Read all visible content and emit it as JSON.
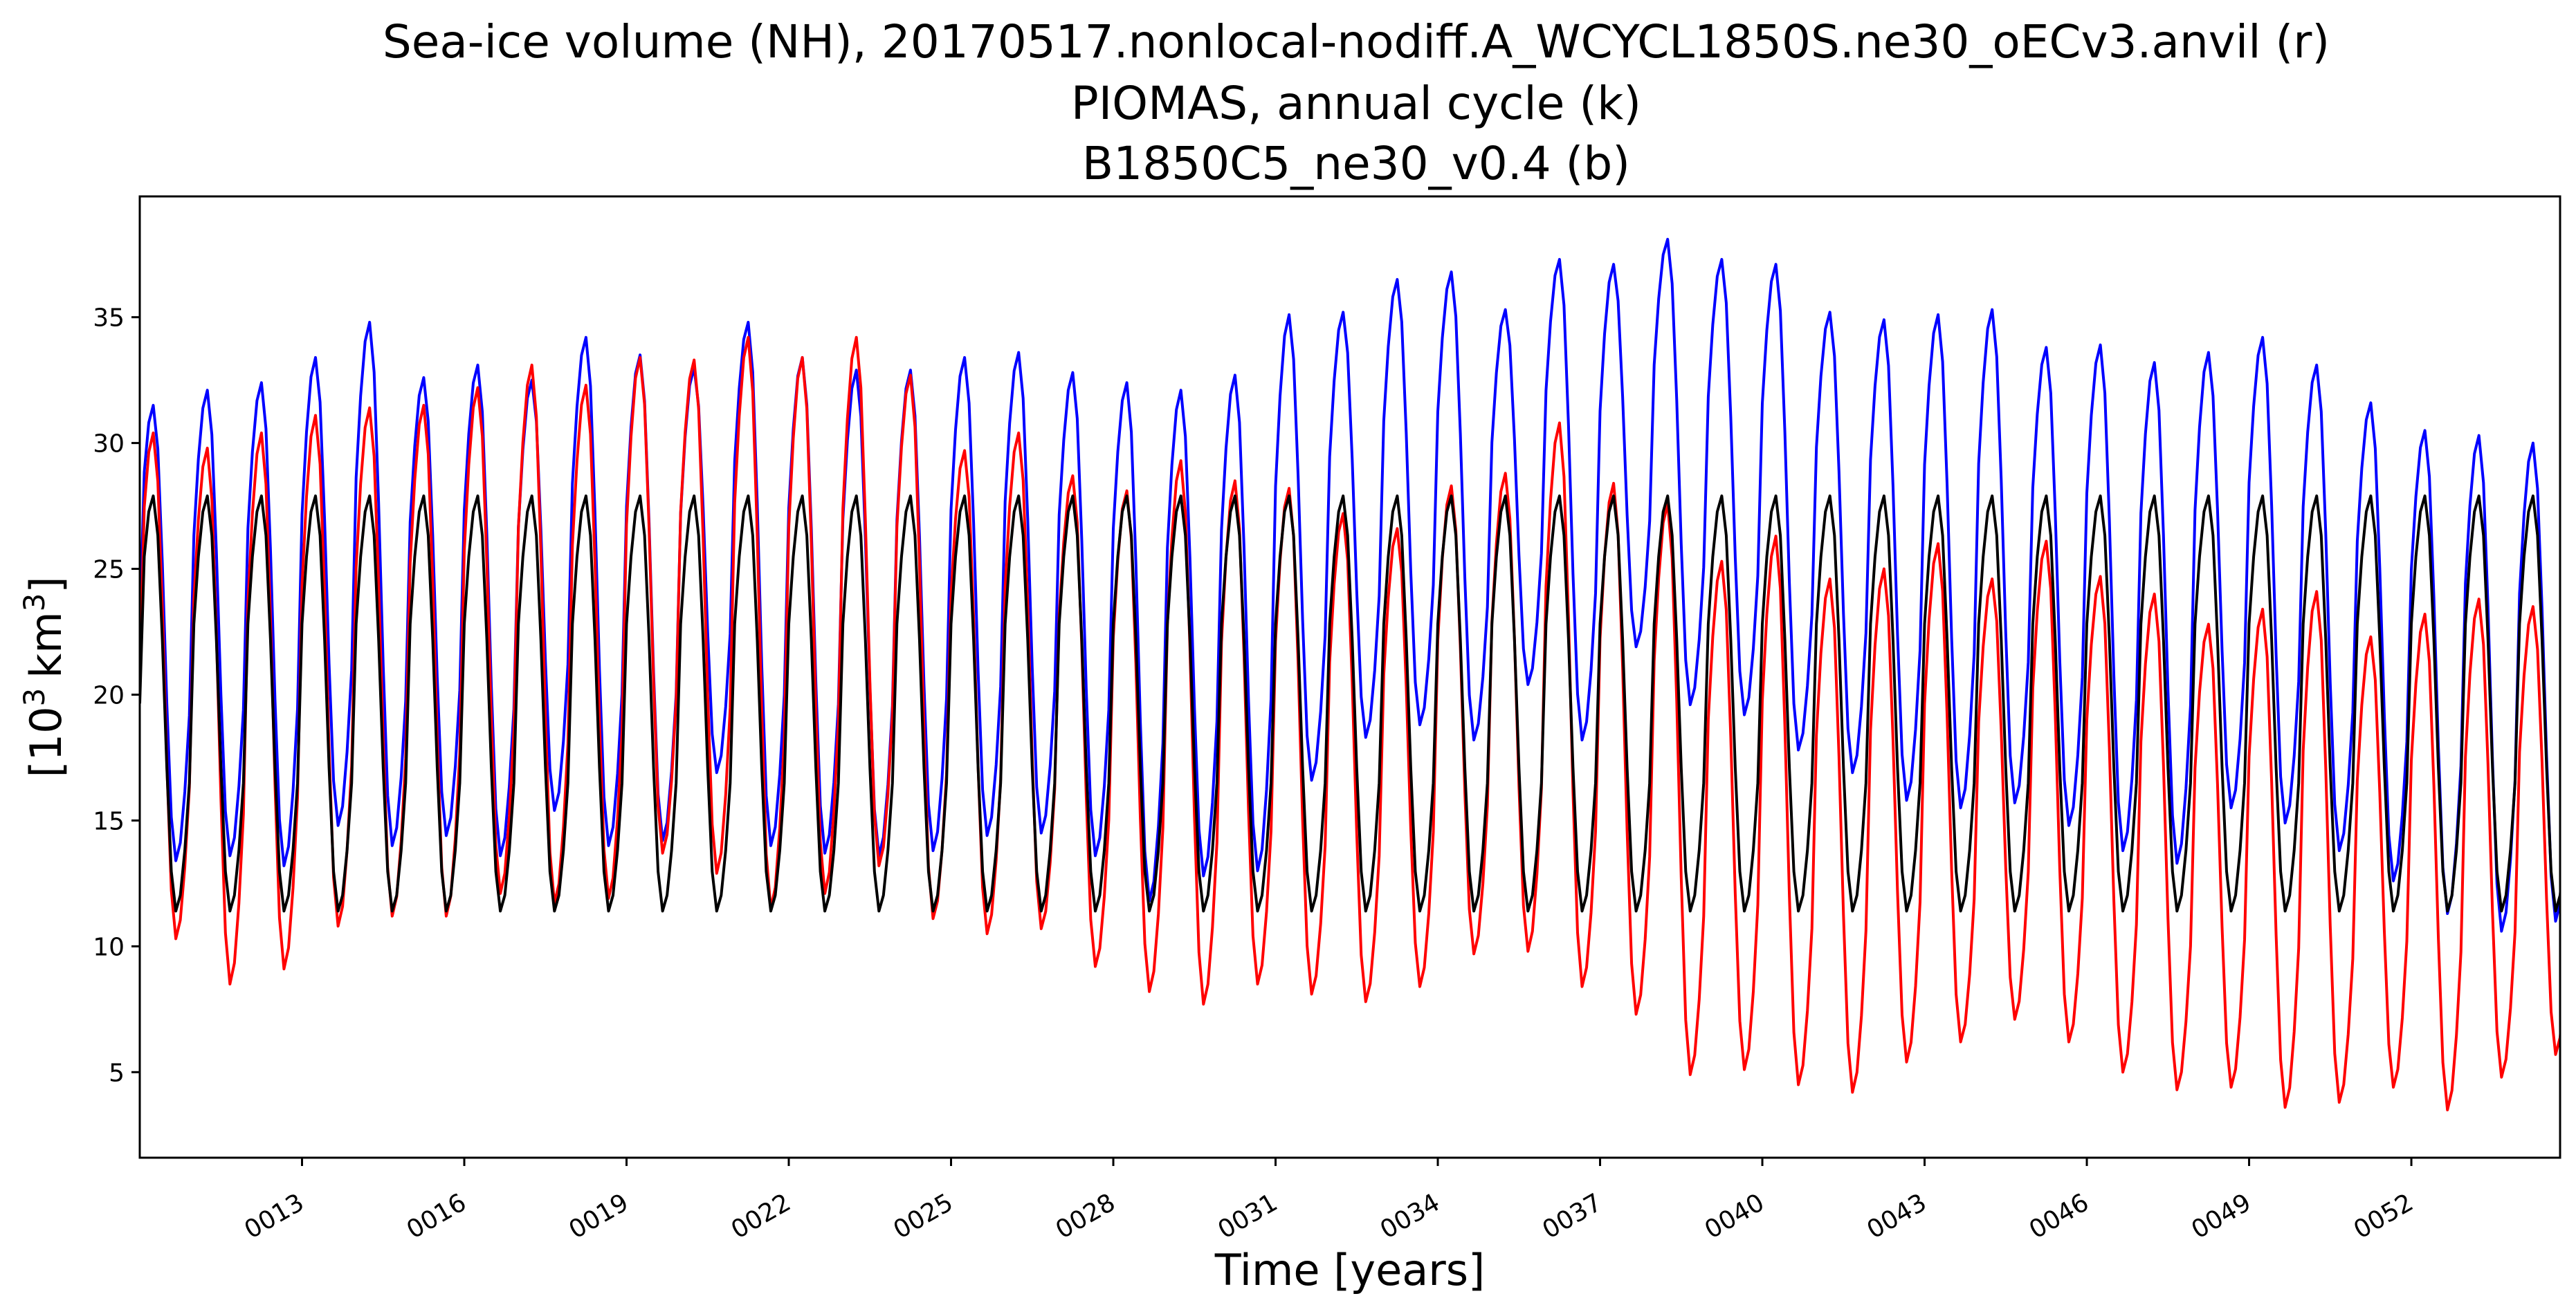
{
  "colors": {
    "background": "#ffffff",
    "axes": "#000000",
    "run_red": "#ff0000",
    "run_blue": "#0000ff",
    "piomas_black": "#000000"
  },
  "chart_data": {
    "type": "line",
    "title_lines": [
      "Sea-ice volume (NH), 20170517.nonlocal-nodiff.A_WCYCL1850S.ne30_oECv3.anvil (r)",
      "PIOMAS, annual cycle (k)",
      "B1850C5_ne30_v0.4 (b)"
    ],
    "xlabel": "Time [years]",
    "ylabel_base": "[10",
    "ylabel_sup": "3",
    "ylabel_unit": "km",
    "ylabel_end": "]",
    "x_unit": "model year",
    "xlim": [
      10.0,
      54.75
    ],
    "ylim": [
      1.6,
      39.8
    ],
    "grid": false,
    "legend": "none",
    "x_ticks": [
      {
        "value": 13,
        "label": "0013"
      },
      {
        "value": 16,
        "label": "0016"
      },
      {
        "value": 19,
        "label": "0019"
      },
      {
        "value": 22,
        "label": "0022"
      },
      {
        "value": 25,
        "label": "0025"
      },
      {
        "value": 28,
        "label": "0028"
      },
      {
        "value": 31,
        "label": "0031"
      },
      {
        "value": 34,
        "label": "0034"
      },
      {
        "value": 37,
        "label": "0037"
      },
      {
        "value": 40,
        "label": "0040"
      },
      {
        "value": 43,
        "label": "0043"
      },
      {
        "value": 46,
        "label": "0046"
      },
      {
        "value": 49,
        "label": "0049"
      },
      {
        "value": 52,
        "label": "0052"
      }
    ],
    "y_ticks": [
      5,
      10,
      15,
      20,
      25,
      30,
      35
    ],
    "years": [
      10,
      11,
      12,
      13,
      14,
      15,
      16,
      17,
      18,
      19,
      20,
      21,
      22,
      23,
      24,
      25,
      26,
      27,
      28,
      29,
      30,
      31,
      32,
      33,
      34,
      35,
      36,
      37,
      38,
      39,
      40,
      41,
      42,
      43,
      44,
      45,
      46,
      47,
      48,
      49,
      50,
      51,
      52,
      53,
      54
    ],
    "series": [
      {
        "color": "#0000ff",
        "annual_max": [
          31.5,
          32.1,
          32.4,
          33.4,
          34.8,
          32.6,
          33.1,
          32.5,
          34.2,
          33.5,
          33.0,
          34.8,
          33.4,
          32.9,
          32.9,
          33.4,
          33.6,
          32.8,
          32.4,
          32.1,
          32.7,
          35.1,
          35.2,
          36.5,
          36.8,
          35.3,
          37.3,
          37.1,
          38.1,
          37.3,
          37.1,
          35.2,
          34.9,
          35.1,
          35.3,
          33.8,
          33.9,
          33.2,
          33.6,
          34.2,
          33.1,
          31.6,
          30.5,
          30.3,
          30.0
        ],
        "annual_min": [
          13.4,
          13.6,
          13.2,
          14.8,
          14.0,
          14.4,
          13.6,
          15.4,
          14.0,
          14.2,
          16.9,
          14.0,
          13.7,
          13.6,
          13.8,
          14.4,
          14.5,
          13.6,
          11.8,
          12.8,
          13.0,
          16.6,
          18.3,
          18.8,
          18.2,
          20.4,
          18.2,
          21.9,
          19.6,
          19.2,
          17.8,
          16.9,
          15.8,
          15.5,
          15.7,
          14.8,
          13.8,
          13.3,
          15.5,
          14.9,
          13.8,
          12.6,
          11.3,
          10.6,
          11.0
        ]
      },
      {
        "color": "#ff0000",
        "annual_max": [
          30.4,
          29.8,
          30.4,
          31.1,
          31.4,
          31.5,
          32.2,
          33.1,
          32.3,
          33.4,
          33.3,
          34.2,
          33.4,
          34.2,
          32.7,
          29.7,
          30.4,
          28.7,
          28.1,
          29.3,
          28.5,
          28.2,
          27.2,
          26.6,
          28.3,
          28.8,
          30.8,
          28.4,
          27.6,
          25.3,
          26.3,
          24.6,
          25.0,
          26.0,
          24.6,
          26.1,
          24.7,
          24.0,
          22.8,
          23.4,
          24.1,
          22.3,
          23.2,
          23.8,
          23.5
        ],
        "annual_min": [
          10.3,
          8.5,
          9.1,
          10.8,
          11.2,
          11.2,
          12.1,
          11.7,
          11.9,
          13.7,
          12.9,
          11.5,
          12.1,
          13.2,
          11.1,
          10.5,
          10.7,
          9.2,
          8.2,
          7.7,
          8.5,
          8.1,
          7.8,
          8.4,
          9.7,
          9.8,
          8.4,
          7.3,
          4.9,
          5.1,
          4.5,
          4.2,
          5.4,
          6.2,
          7.1,
          6.2,
          5.0,
          4.3,
          4.4,
          3.6,
          3.8,
          4.4,
          3.5,
          4.8,
          5.7
        ]
      },
      {
        "color": "#000000",
        "annual_max": [
          27.9,
          27.9,
          27.9,
          27.9,
          27.9,
          27.9,
          27.9,
          27.9,
          27.9,
          27.9,
          27.9,
          27.9,
          27.9,
          27.9,
          27.9,
          27.9,
          27.9,
          27.9,
          27.9,
          27.9,
          27.9,
          27.9,
          27.9,
          27.9,
          27.9,
          27.9,
          27.9,
          27.9,
          27.9,
          27.9,
          27.9,
          27.9,
          27.9,
          27.9,
          27.9,
          27.9,
          27.9,
          27.9,
          27.9,
          27.9,
          27.9,
          27.9,
          27.9,
          27.9,
          27.9
        ],
        "annual_min": [
          11.4,
          11.4,
          11.4,
          11.4,
          11.4,
          11.4,
          11.4,
          11.4,
          11.4,
          11.4,
          11.4,
          11.4,
          11.4,
          11.4,
          11.4,
          11.4,
          11.4,
          11.4,
          11.4,
          11.4,
          11.4,
          11.4,
          11.4,
          11.4,
          11.4,
          11.4,
          11.4,
          11.4,
          11.4,
          11.4,
          11.4,
          11.4,
          11.4,
          11.4,
          11.4,
          11.4,
          11.4,
          11.4,
          11.4,
          11.4,
          11.4,
          11.4,
          11.4,
          11.4,
          11.4
        ]
      }
    ]
  }
}
